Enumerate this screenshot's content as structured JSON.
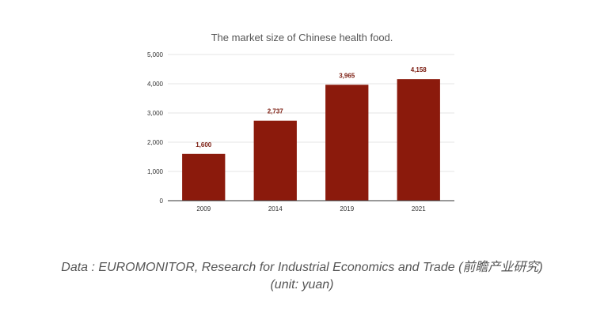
{
  "chart_data": {
    "type": "bar",
    "title": "The market size of Chinese health food.",
    "categories": [
      "2009",
      "2014",
      "2019",
      "2021"
    ],
    "values": [
      1600,
      2737,
      3965,
      4158
    ],
    "data_labels": [
      "1,600",
      "2,737",
      "3,965",
      "4,158"
    ],
    "y_ticks": [
      0,
      1000,
      2000,
      3000,
      4000,
      5000
    ],
    "y_tick_labels": [
      "0",
      "1,000",
      "2,000",
      "3,000",
      "4,000",
      "5,000"
    ],
    "ylim": [
      0,
      5000
    ],
    "xlabel": "",
    "ylabel": "",
    "grid": true,
    "legend": "none",
    "bar_color": "#8b1a0c",
    "label_color": "#7a1a0e"
  },
  "caption": {
    "source": "Data : EUROMONITOR, Research for Industrial Economics and Trade (前瞻产业研究)",
    "unit": "(unit: yuan)"
  }
}
